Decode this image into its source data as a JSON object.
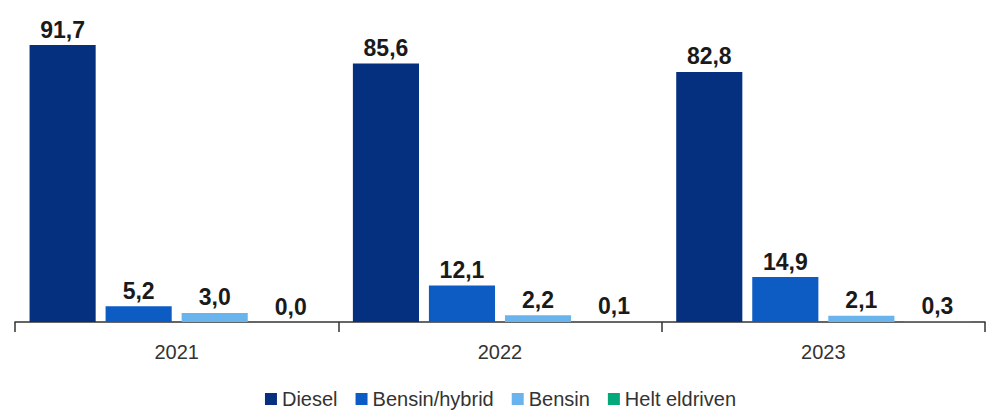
{
  "chart_data": {
    "type": "bar",
    "categories": [
      "2021",
      "2022",
      "2023"
    ],
    "series": [
      {
        "name": "Diesel",
        "color": "#05307f",
        "values": [
          91.7,
          85.6,
          82.8
        ],
        "value_labels": [
          "91,7",
          "85,6",
          "82,8"
        ]
      },
      {
        "name": "Bensin/hybrid",
        "color": "#0d5cc4",
        "values": [
          5.2,
          12.1,
          14.9
        ],
        "value_labels": [
          "5,2",
          "12,1",
          "14,9"
        ]
      },
      {
        "name": "Bensin",
        "color": "#6ab4ee",
        "values": [
          3.0,
          2.2,
          2.1
        ],
        "value_labels": [
          "3,0",
          "2,2",
          "2,1"
        ]
      },
      {
        "name": "Helt eldriven",
        "color": "#00a87a",
        "values": [
          0.0,
          0.1,
          0.3
        ],
        "value_labels": [
          "0,0",
          "0,1",
          "0,3"
        ]
      }
    ],
    "ylim": [
      0,
      100
    ],
    "grid": false,
    "legend": "bottom",
    "data_labels": true,
    "tick_labels": "x"
  }
}
